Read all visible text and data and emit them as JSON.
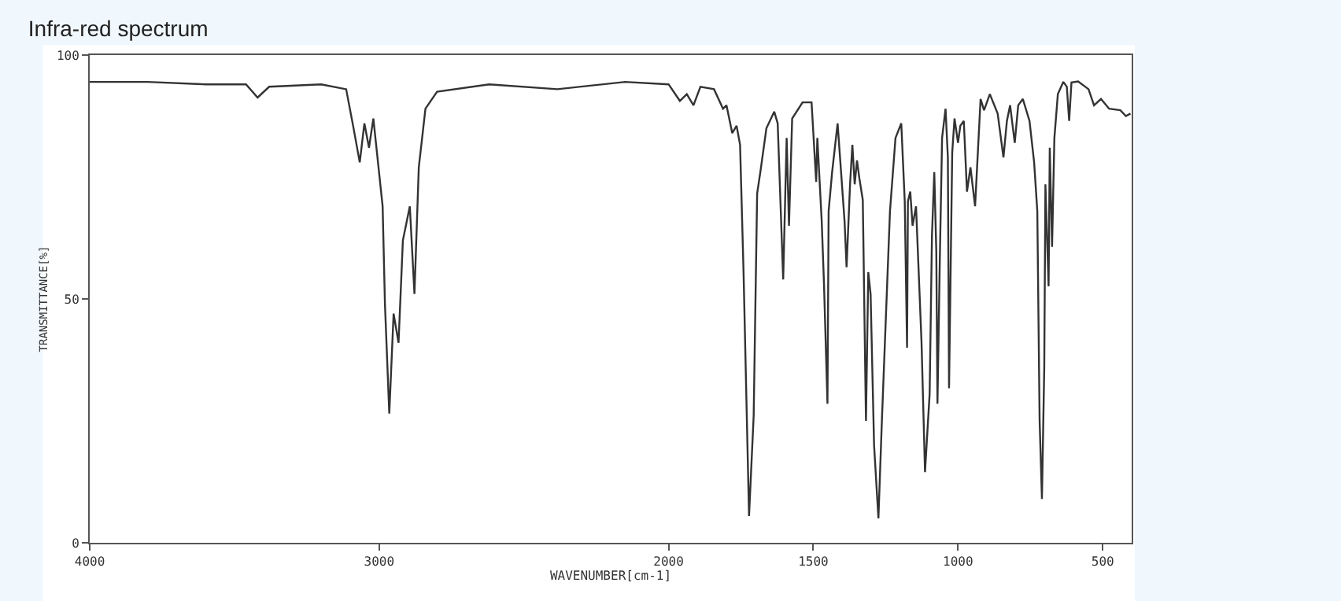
{
  "chart_data": {
    "type": "line",
    "title": "Infra-red spectrum",
    "xlabel": "WAVENUMBER[cm-1]",
    "ylabel": "TRANSMITTANCE[%]",
    "xlim": [
      4000,
      400
    ],
    "xticks": [
      4000,
      3000,
      2000,
      1500,
      1000,
      500
    ],
    "ylim": [
      0,
      100
    ],
    "yticks": [
      0,
      50,
      100
    ],
    "marker": "none",
    "line_style": "solid",
    "series": [
      {
        "color": "#333333",
        "x": [
          4000,
          3800,
          3600,
          3460,
          3420,
          3380,
          3200,
          3114,
          3090,
          3067,
          3051,
          3035,
          3020,
          2988,
          2980,
          2965,
          2950,
          2933,
          2918,
          2894,
          2878,
          2863,
          2840,
          2800,
          2620,
          2384,
          2150,
          2000,
          1961,
          1937,
          1914,
          1890,
          1843,
          1812,
          1800,
          1780,
          1765,
          1753,
          1741,
          1722,
          1706,
          1694,
          1682,
          1662,
          1635,
          1623,
          1604,
          1592,
          1584,
          1573,
          1537,
          1506,
          1490,
          1486,
          1471,
          1463,
          1451,
          1447,
          1435,
          1416,
          1392,
          1385,
          1373,
          1365,
          1357,
          1349,
          1341,
          1329,
          1318,
          1310,
          1302,
          1290,
          1275,
          1263,
          1235,
          1216,
          1196,
          1184,
          1176,
          1173,
          1165,
          1157,
          1145,
          1126,
          1114,
          1098,
          1090,
          1082,
          1075,
          1071,
          1063,
          1055,
          1043,
          1035,
          1031,
          1020,
          1012,
          1000,
          992,
          980,
          969,
          957,
          941,
          922,
          910,
          890,
          863,
          843,
          831,
          820,
          804,
          792,
          776,
          753,
          737,
          726,
          718,
          710,
          702,
          698,
          687,
          683,
          675,
          667,
          655,
          636,
          624,
          616,
          608,
          585,
          549,
          530,
          506,
          478,
          439,
          420,
          404
        ],
        "values": [
          94.5,
          94.5,
          94,
          94,
          91.3,
          93.5,
          94,
          93,
          85.5,
          78,
          86,
          81,
          87,
          69,
          49,
          26.5,
          47,
          41,
          62,
          69,
          51,
          77,
          89,
          92.5,
          94,
          93,
          94.5,
          94,
          90.6,
          92,
          89.7,
          93.5,
          93,
          89,
          89.7,
          84,
          85.5,
          81.6,
          55.5,
          5.5,
          26,
          71.6,
          76.4,
          85,
          88.4,
          86,
          54,
          83,
          65,
          87,
          90.3,
          90.3,
          74,
          83,
          66,
          53,
          28.5,
          68,
          76,
          86,
          66,
          56.5,
          73.5,
          81.6,
          73.5,
          78.4,
          74.8,
          70.3,
          25,
          55.5,
          51,
          20,
          5,
          25,
          68,
          83,
          86,
          70,
          40,
          70,
          72,
          65,
          69,
          41,
          14.5,
          30.6,
          63,
          76,
          59.7,
          28.5,
          57.5,
          83,
          89,
          79,
          31.7,
          80,
          87,
          82,
          85.5,
          86.5,
          72,
          77,
          69,
          91,
          88.7,
          92,
          88,
          79,
          86.5,
          89.7,
          82,
          89.7,
          91,
          86.5,
          78,
          68,
          25,
          9,
          36,
          73.5,
          52.6,
          81,
          60.7,
          83,
          92,
          94.5,
          93.5,
          86.5,
          94.4,
          94.6,
          93,
          89.7,
          91,
          89,
          88.7,
          87.5,
          88
        ]
      }
    ]
  }
}
